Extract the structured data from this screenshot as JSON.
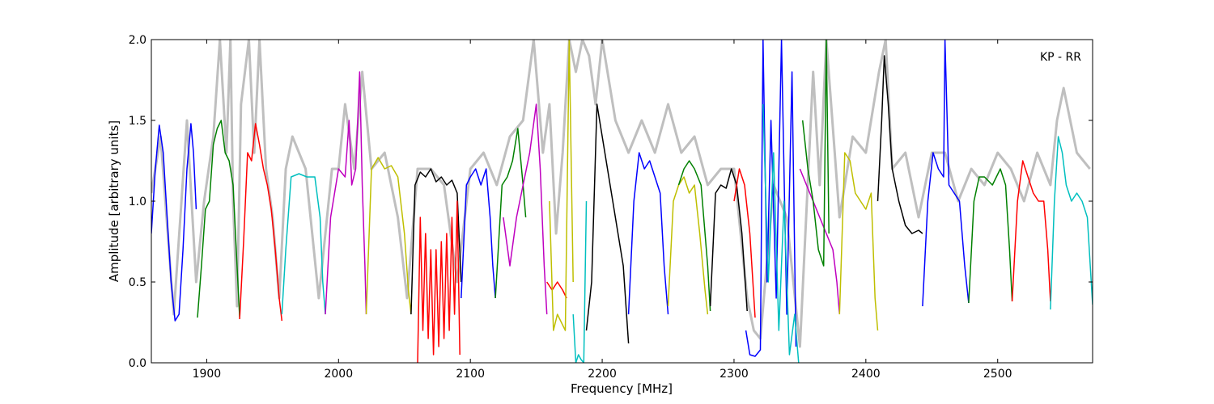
{
  "chart_data": {
    "type": "line",
    "title": "",
    "annotation": "KP - RR",
    "xlabel": "Frequency [MHz]",
    "ylabel": "Amplitude [arbitrary units]",
    "xlim": [
      1858,
      2572
    ],
    "ylim": [
      0,
      2.0
    ],
    "x_ticks": [
      1900,
      2000,
      2100,
      2200,
      2300,
      2400,
      2500
    ],
    "y_ticks": [
      0.0,
      0.5,
      1.0,
      1.5,
      2.0
    ],
    "x_tick_labels": [
      "1900",
      "2000",
      "2100",
      "2200",
      "2300",
      "2400",
      "2500"
    ],
    "y_tick_labels": [
      "0.0",
      "0.5",
      "1.0",
      "1.5",
      "2.0"
    ],
    "grid": false,
    "background_series": {
      "color": "#bfbfbf",
      "x": [
        1858,
        1865,
        1875,
        1885,
        1892,
        1898,
        1905,
        1910,
        1915,
        1918,
        1920,
        1923,
        1926,
        1932,
        1936,
        1940,
        1945,
        1950,
        1955,
        1960,
        1965,
        1975,
        1985,
        1995,
        2000,
        2005,
        2012,
        2018,
        2025,
        2035,
        2045,
        2052,
        2060,
        2070,
        2080,
        2090,
        2100,
        2110,
        2120,
        2130,
        2140,
        2148,
        2155,
        2160,
        2165,
        2170,
        2175,
        2180,
        2185,
        2190,
        2195,
        2200,
        2210,
        2220,
        2230,
        2240,
        2250,
        2260,
        2270,
        2280,
        2290,
        2300,
        2310,
        2315,
        2320,
        2330,
        2340,
        2350,
        2360,
        2365,
        2370,
        2380,
        2390,
        2400,
        2410,
        2415,
        2420,
        2430,
        2440,
        2450,
        2460,
        2470,
        2480,
        2490,
        2500,
        2510,
        2520,
        2530,
        2540,
        2545,
        2550,
        2560,
        2570
      ],
      "y": [
        1.05,
        1.4,
        0.3,
        1.5,
        0.5,
        1.0,
        1.4,
        2.0,
        1.3,
        2.0,
        1.0,
        0.35,
        1.6,
        2.0,
        1.3,
        2.0,
        1.2,
        0.9,
        0.4,
        1.2,
        1.4,
        1.2,
        0.4,
        1.2,
        1.2,
        1.6,
        1.2,
        1.8,
        1.2,
        1.3,
        0.9,
        0.4,
        1.2,
        1.2,
        1.1,
        0.5,
        1.2,
        1.3,
        1.1,
        1.4,
        1.5,
        2.0,
        1.3,
        1.6,
        0.8,
        1.3,
        2.0,
        1.8,
        2.0,
        1.9,
        1.6,
        2.0,
        1.5,
        1.3,
        1.5,
        1.3,
        1.6,
        1.3,
        1.4,
        1.1,
        1.2,
        1.2,
        0.4,
        0.2,
        0.15,
        1.1,
        0.9,
        0.1,
        1.8,
        1.1,
        2.0,
        0.9,
        1.4,
        1.3,
        1.8,
        2.0,
        1.2,
        1.3,
        0.9,
        1.3,
        1.3,
        1.0,
        1.2,
        1.1,
        1.3,
        1.2,
        1.0,
        1.3,
        1.1,
        1.5,
        1.7,
        1.3,
        1.2
      ]
    },
    "series": [
      {
        "color": "#0000ff",
        "x": [
          1858,
          1861,
          1864,
          1867,
          1870,
          1873,
          1876,
          1879,
          1882,
          1885,
          1888,
          1890,
          1892
        ],
        "y": [
          0.8,
          1.2,
          1.47,
          1.3,
          0.9,
          0.5,
          0.26,
          0.3,
          0.7,
          1.2,
          1.48,
          1.3,
          0.95
        ]
      },
      {
        "color": "#008000",
        "x": [
          1893,
          1896,
          1899,
          1902,
          1905,
          1908,
          1911,
          1914,
          1917,
          1920,
          1923,
          1925
        ],
        "y": [
          0.28,
          0.6,
          0.95,
          1.0,
          1.35,
          1.45,
          1.5,
          1.3,
          1.25,
          1.1,
          0.6,
          0.28
        ]
      },
      {
        "color": "#ff0000",
        "x": [
          1925,
          1928,
          1931,
          1934,
          1937,
          1940,
          1943,
          1946,
          1949,
          1952,
          1955,
          1957
        ],
        "y": [
          0.27,
          0.75,
          1.3,
          1.25,
          1.48,
          1.35,
          1.2,
          1.1,
          0.95,
          0.7,
          0.4,
          0.26
        ]
      },
      {
        "color": "#00bfbf",
        "x": [
          1957,
          1960,
          1964,
          1970,
          1976,
          1982,
          1986,
          1988,
          1990
        ],
        "y": [
          0.3,
          0.7,
          1.15,
          1.17,
          1.15,
          1.15,
          0.9,
          0.5,
          0.3
        ]
      },
      {
        "color": "#bf00bf",
        "x": [
          1990,
          1994,
          2000,
          2005,
          2008,
          2010,
          2013,
          2016,
          2018,
          2020,
          2021
        ],
        "y": [
          0.3,
          0.9,
          1.2,
          1.15,
          1.5,
          1.1,
          1.2,
          1.8,
          1.1,
          0.6,
          0.3
        ]
      },
      {
        "color": "#bfbf00",
        "x": [
          2021,
          2025,
          2030,
          2035,
          2040,
          2045,
          2050,
          2053,
          2055
        ],
        "y": [
          0.3,
          1.2,
          1.27,
          1.2,
          1.22,
          1.15,
          0.8,
          0.45,
          0.3
        ]
      },
      {
        "color": "#000000",
        "x": [
          2055,
          2058,
          2062,
          2066,
          2070,
          2074,
          2078,
          2082,
          2086,
          2090,
          2093
        ],
        "y": [
          0.3,
          1.1,
          1.18,
          1.15,
          1.2,
          1.12,
          1.15,
          1.1,
          1.13,
          1.05,
          0.5
        ]
      },
      {
        "color": "#ff0000",
        "x": [
          2060,
          2062,
          2064,
          2066,
          2068,
          2070,
          2072,
          2074,
          2076,
          2078,
          2080,
          2082,
          2084,
          2086,
          2088,
          2090,
          2092
        ],
        "y": [
          0.0,
          0.9,
          0.2,
          0.8,
          0.15,
          0.7,
          0.05,
          0.7,
          0.1,
          0.75,
          0.15,
          0.8,
          0.2,
          0.9,
          0.3,
          1.0,
          0.05
        ]
      },
      {
        "color": "#0000ff",
        "x": [
          2093,
          2097,
          2100,
          2104,
          2108,
          2112,
          2115,
          2117,
          2119
        ],
        "y": [
          0.4,
          1.1,
          1.15,
          1.2,
          1.1,
          1.2,
          0.9,
          0.6,
          0.4
        ]
      },
      {
        "color": "#008000",
        "x": [
          2119,
          2124,
          2128,
          2132,
          2136,
          2140,
          2142
        ],
        "y": [
          0.4,
          1.1,
          1.15,
          1.25,
          1.45,
          1.1,
          0.9
        ]
      },
      {
        "color": "#bf00bf",
        "x": [
          2125,
          2130,
          2135,
          2140,
          2145,
          2150,
          2153,
          2156,
          2158
        ],
        "y": [
          0.9,
          0.6,
          0.9,
          1.1,
          1.3,
          1.6,
          1.2,
          0.6,
          0.3
        ]
      },
      {
        "color": "#ff0000",
        "x": [
          2158,
          2162,
          2166,
          2170,
          2173
        ],
        "y": [
          0.5,
          0.45,
          0.5,
          0.45,
          0.4
        ]
      },
      {
        "color": "#bfbf00",
        "x": [
          2160,
          2163,
          2166,
          2169,
          2172,
          2175,
          2178
        ],
        "y": [
          1.0,
          0.2,
          0.3,
          0.25,
          0.2,
          2.0,
          0.5
        ]
      },
      {
        "color": "#00bfbf",
        "x": [
          2178,
          2180,
          2182,
          2184,
          2186,
          2188
        ],
        "y": [
          0.3,
          0.0,
          0.05,
          0.02,
          0.0,
          1.0
        ]
      },
      {
        "color": "#000000",
        "x": [
          2188,
          2192,
          2196,
          2200,
          2204,
          2208,
          2212,
          2216,
          2220
        ],
        "y": [
          0.2,
          0.5,
          1.6,
          1.4,
          1.2,
          1.0,
          0.8,
          0.6,
          0.12
        ]
      },
      {
        "color": "#0000ff",
        "x": [
          2220,
          2224,
          2228,
          2232,
          2236,
          2240,
          2244,
          2247,
          2250
        ],
        "y": [
          0.3,
          1.0,
          1.3,
          1.2,
          1.25,
          1.15,
          1.05,
          0.6,
          0.3
        ]
      },
      {
        "color": "#bfbf00",
        "x": [
          2250,
          2254,
          2258,
          2262,
          2266,
          2270,
          2274,
          2278,
          2280
        ],
        "y": [
          0.35,
          1.0,
          1.1,
          1.15,
          1.05,
          1.1,
          0.8,
          0.45,
          0.3
        ]
      },
      {
        "color": "#008000",
        "x": [
          2258,
          2262,
          2266,
          2270,
          2275,
          2280,
          2282
        ],
        "y": [
          1.1,
          1.2,
          1.25,
          1.2,
          1.1,
          0.6,
          0.32
        ]
      },
      {
        "color": "#000000",
        "x": [
          2282,
          2286,
          2290,
          2294,
          2298,
          2302,
          2306,
          2310
        ],
        "y": [
          0.35,
          1.05,
          1.1,
          1.08,
          1.2,
          1.1,
          0.8,
          0.32
        ]
      },
      {
        "color": "#ff0000",
        "x": [
          2300,
          2304,
          2308,
          2312,
          2316
        ],
        "y": [
          1.0,
          1.2,
          1.1,
          0.8,
          0.28
        ]
      },
      {
        "color": "#0000ff",
        "x": [
          2309,
          2312,
          2316,
          2320,
          2322,
          2325,
          2328,
          2332,
          2336,
          2340,
          2344,
          2347
        ],
        "y": [
          0.2,
          0.05,
          0.04,
          0.08,
          2.0,
          0.5,
          1.5,
          0.4,
          2.0,
          0.3,
          1.8,
          0.1
        ]
      },
      {
        "color": "#00bfbf",
        "x": [
          2322,
          2326,
          2330,
          2334,
          2338,
          2342,
          2346,
          2349
        ],
        "y": [
          1.6,
          0.5,
          1.3,
          0.2,
          1.0,
          0.05,
          0.3,
          0.0
        ]
      },
      {
        "color": "#bf00bf",
        "x": [
          2350,
          2355,
          2360,
          2365,
          2370,
          2375,
          2378,
          2380
        ],
        "y": [
          1.2,
          1.1,
          1.0,
          0.9,
          0.8,
          0.7,
          0.5,
          0.3
        ]
      },
      {
        "color": "#008000",
        "x": [
          2352,
          2356,
          2360,
          2364,
          2368,
          2370,
          2372
        ],
        "y": [
          1.5,
          1.2,
          1.0,
          0.7,
          0.6,
          2.0,
          0.8
        ]
      },
      {
        "color": "#bfbf00",
        "x": [
          2380,
          2384,
          2388,
          2392,
          2396,
          2400,
          2404,
          2407,
          2409
        ],
        "y": [
          0.3,
          1.3,
          1.25,
          1.05,
          1.0,
          0.95,
          1.05,
          0.4,
          0.2
        ]
      },
      {
        "color": "#000000",
        "x": [
          2409,
          2412,
          2414,
          2417,
          2420,
          2425,
          2430,
          2435,
          2440,
          2443
        ],
        "y": [
          1.0,
          1.5,
          1.9,
          1.6,
          1.2,
          1.0,
          0.85,
          0.8,
          0.82,
          0.8
        ]
      },
      {
        "color": "#0000ff",
        "x": [
          2443,
          2447,
          2451,
          2455,
          2459,
          2460,
          2463,
          2467,
          2471,
          2475,
          2478
        ],
        "y": [
          0.35,
          1.0,
          1.3,
          1.2,
          1.15,
          2.0,
          1.1,
          1.05,
          1.0,
          0.6,
          0.37
        ]
      },
      {
        "color": "#008000",
        "x": [
          2478,
          2482,
          2486,
          2490,
          2496,
          2502,
          2506,
          2509,
          2511
        ],
        "y": [
          0.37,
          1.0,
          1.15,
          1.15,
          1.1,
          1.2,
          1.1,
          0.7,
          0.38
        ]
      },
      {
        "color": "#ff0000",
        "x": [
          2511,
          2515,
          2519,
          2523,
          2527,
          2531,
          2535,
          2538,
          2540
        ],
        "y": [
          0.38,
          1.0,
          1.25,
          1.15,
          1.05,
          1.0,
          1.0,
          0.7,
          0.38
        ]
      },
      {
        "color": "#00bfbf",
        "x": [
          2540,
          2543,
          2546,
          2549,
          2552,
          2556,
          2560,
          2564,
          2568,
          2572
        ],
        "y": [
          0.33,
          1.0,
          1.4,
          1.3,
          1.1,
          1.0,
          1.05,
          1.0,
          0.9,
          0.36
        ]
      }
    ]
  }
}
